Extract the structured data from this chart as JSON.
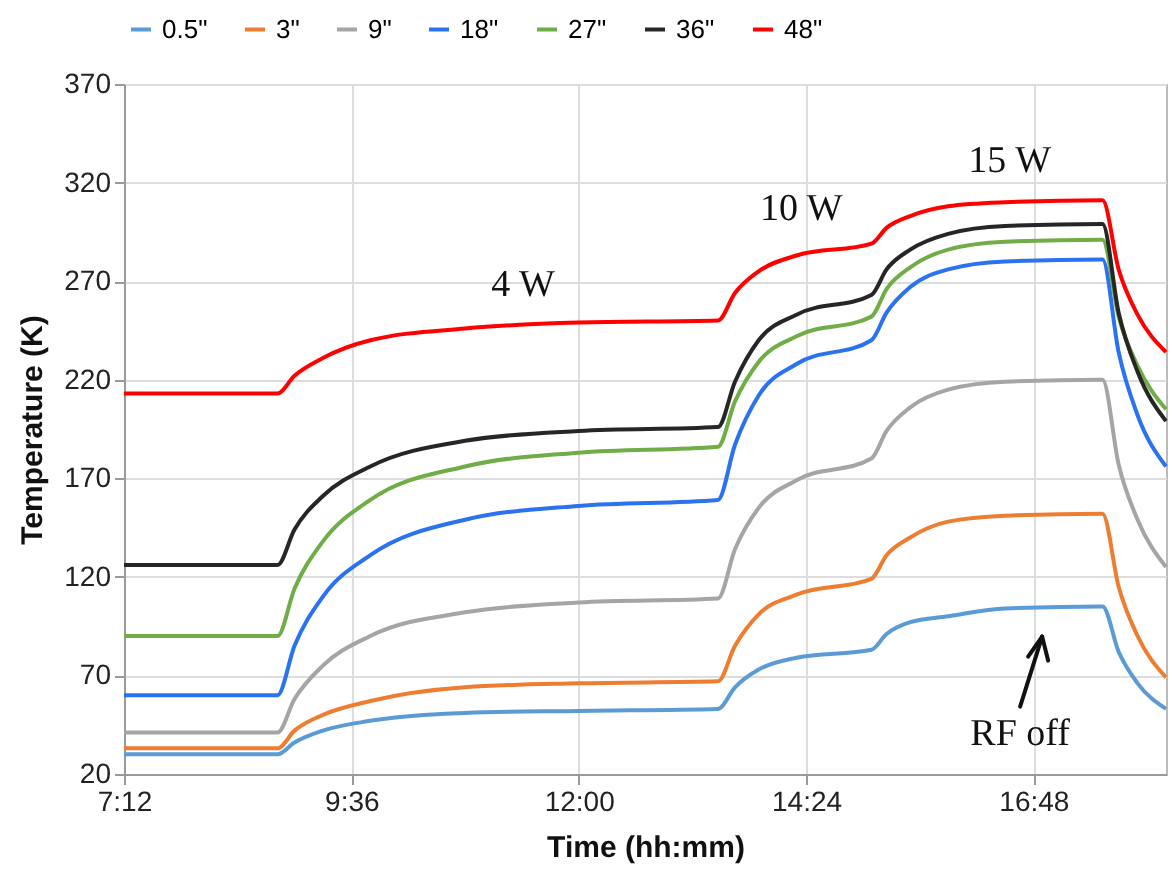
{
  "chart_data": {
    "type": "line",
    "xlabel": "Time (hh:mm)",
    "ylabel": "Temperature (K)",
    "x": [
      7.2,
      8.82,
      9.0,
      9.3,
      9.8,
      10.8,
      12.0,
      13.47,
      13.65,
      13.9,
      14.3,
      15.09,
      15.25,
      15.5,
      15.9,
      16.5,
      17.53,
      17.7,
      17.9,
      18.2
    ],
    "series": [
      {
        "name": "0.5\"",
        "color": "#5b9bd5",
        "values": [
          30,
          30,
          36,
          42,
          47,
          51,
          52,
          53,
          64,
          73,
          79,
          83,
          91,
          97,
          100,
          104,
          105,
          82,
          66,
          53
        ]
      },
      {
        "name": "3\"",
        "color": "#ed7d31",
        "values": [
          33,
          33,
          42,
          50,
          57,
          64,
          66,
          67,
          85,
          101,
          111,
          119,
          131,
          140,
          148,
          151,
          152,
          115,
          90,
          69
        ]
      },
      {
        "name": "9\"",
        "color": "#a5a5a5",
        "values": [
          41,
          41,
          58,
          75,
          90,
          102,
          107,
          109,
          134,
          155,
          169,
          180,
          194,
          206,
          215,
          219,
          220,
          177,
          149,
          125
        ]
      },
      {
        "name": "18\"",
        "color": "#2a72f0",
        "values": [
          60,
          60,
          85,
          110,
          131,
          149,
          156,
          159,
          187,
          212,
          228,
          240,
          254,
          267,
          276,
          280,
          281,
          234,
          202,
          176
        ]
      },
      {
        "name": "27\"",
        "color": "#70ad47",
        "values": [
          90,
          90,
          114,
          138,
          159,
          176,
          183,
          186,
          209,
          229,
          242,
          252,
          266,
          277,
          286,
          290,
          291,
          252,
          227,
          205
        ]
      },
      {
        "name": "36\"",
        "color": "#262626",
        "values": [
          126,
          126,
          144,
          161,
          176,
          189,
          194,
          196,
          219,
          240,
          253,
          263,
          276,
          286,
          294,
          298,
          299,
          254,
          224,
          199
        ]
      },
      {
        "name": "48\"",
        "color": "#ff0000",
        "values": [
          213,
          213,
          222,
          231,
          240,
          246,
          249,
          250,
          264,
          275,
          283,
          289,
          297,
          303,
          308,
          310,
          311,
          276,
          253,
          234
        ]
      }
    ],
    "xlim": [
      7.2,
      18.2
    ],
    "xticks": [
      {
        "value": 7.2,
        "label": "7:12"
      },
      {
        "value": 9.6,
        "label": "9:36"
      },
      {
        "value": 12,
        "label": "12:00"
      },
      {
        "value": 14.4,
        "label": "14:24"
      },
      {
        "value": 16.8,
        "label": "16:48"
      }
    ],
    "ylim": [
      20,
      370
    ],
    "yticks": [
      20,
      70,
      120,
      170,
      220,
      270,
      320,
      370
    ],
    "grid": true,
    "legend": "top",
    "marker": "none",
    "line_style": "solid",
    "annotations": [
      "4 W",
      "10 W",
      "15 W",
      "RF off"
    ]
  }
}
